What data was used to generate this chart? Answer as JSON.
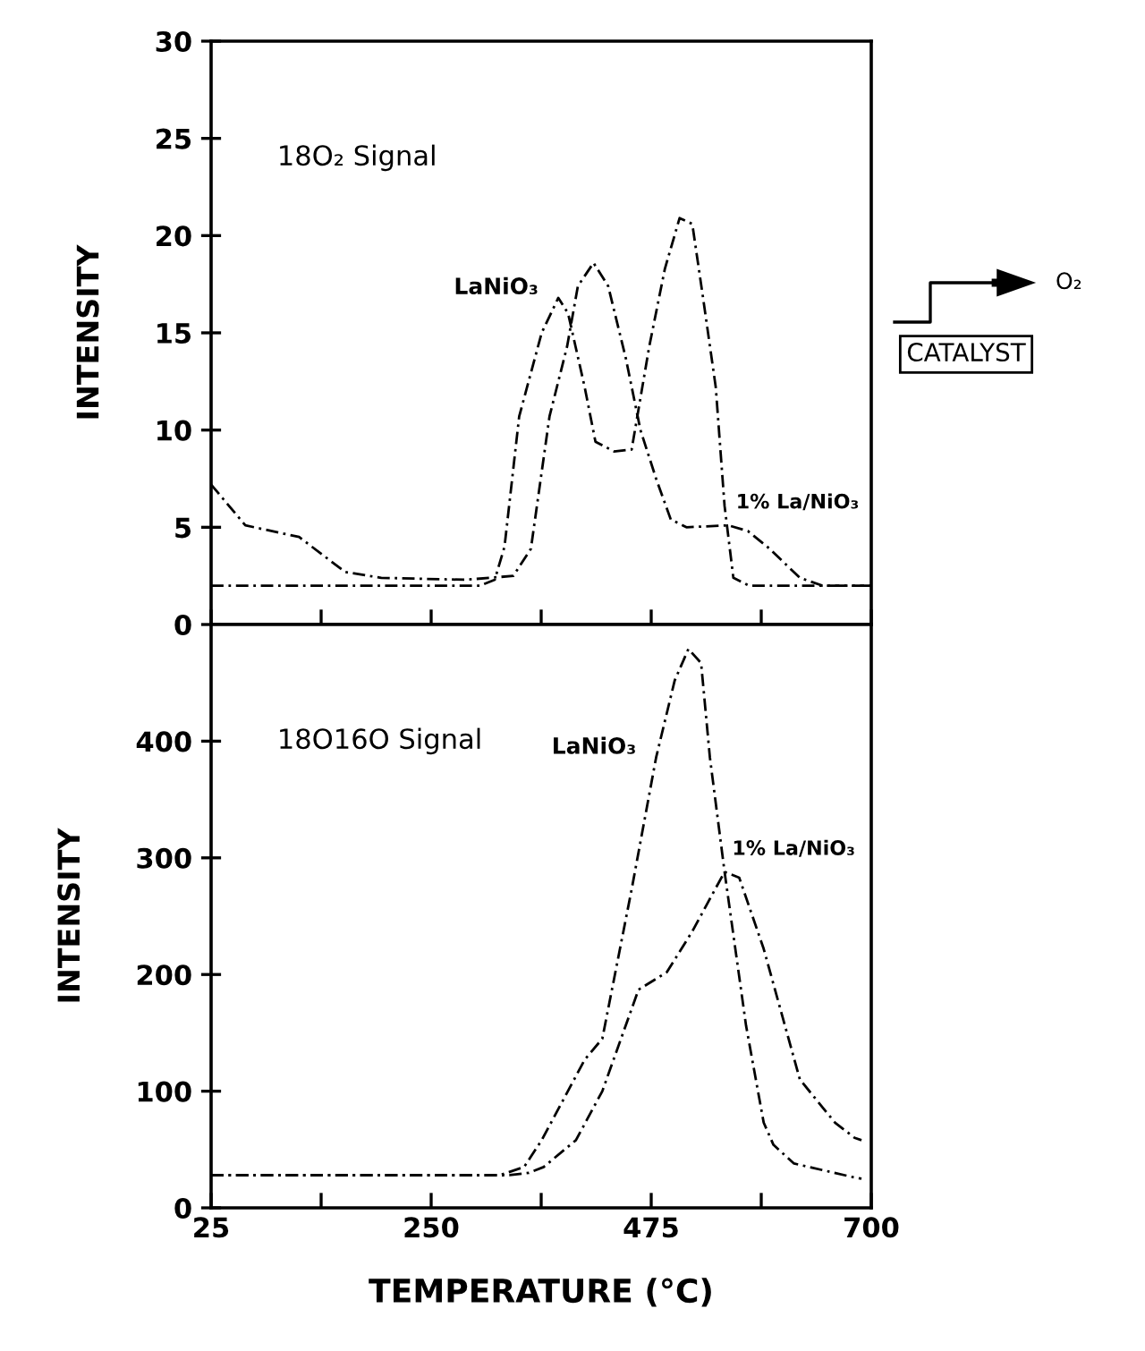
{
  "chart_data": [
    {
      "type": "line",
      "ylabel": "INTENSITY",
      "xlim": [
        25,
        700
      ],
      "xticks": [
        25,
        {
          "value": 137.5,
          "label": null
        },
        250,
        {
          "value": 362.5,
          "label": null
        },
        475,
        {
          "value": 587.5,
          "label": null
        },
        700
      ],
      "ylim": [
        0,
        30
      ],
      "yticks": [
        0,
        5,
        10,
        15,
        20,
        25,
        30
      ],
      "tick_labels": "y",
      "grid": false,
      "legend": false,
      "marker": "none",
      "line_style": "dashed",
      "series": [
        {
          "color": "#000000",
          "x": [
            25,
            300,
            315,
            325,
            340,
            363,
            380,
            390,
            407,
            418,
            437,
            455,
            473,
            489,
            504,
            517,
            528,
            541,
            550,
            559,
            575,
            700
          ],
          "values": [
            2,
            2,
            2.3,
            4,
            10.7,
            15,
            16.8,
            16,
            12.2,
            9.4,
            8.9,
            9,
            14.3,
            18.3,
            20.9,
            20.6,
            16.8,
            12.2,
            6.1,
            2.4,
            2,
            2
          ]
        },
        {
          "color": "#000000",
          "x": [
            25,
            60,
            115,
            162,
            199,
            285,
            334,
            352,
            371,
            389,
            400,
            416,
            431,
            449,
            464,
            480,
            495,
            511,
            554,
            574,
            596,
            627,
            650,
            700
          ],
          "values": [
            7.2,
            5.1,
            4.5,
            2.7,
            2.4,
            2.3,
            2.5,
            3.9,
            10.7,
            14.3,
            17.4,
            18.6,
            17.4,
            13.7,
            10,
            7.5,
            5.4,
            5,
            5.1,
            4.8,
            3.9,
            2.4,
            2,
            2
          ]
        }
      ],
      "annotations": [
        "18O₂ Signal",
        {
          "text": "LaNiO₃",
          "x": 380,
          "y": 16.8
        },
        {
          "text": "1% La/NiO₃",
          "x": 554,
          "y": 5.1
        },
        "O₂",
        "CATALYST"
      ]
    },
    {
      "type": "line",
      "ylabel": "INTENSITY",
      "xlabel": "TEMPERATURE (°C)",
      "xlim": [
        25,
        700
      ],
      "xticks": [
        25,
        {
          "value": 137.5,
          "label": null
        },
        250,
        {
          "value": 362.5,
          "label": null
        },
        475,
        {
          "value": 587.5,
          "label": null
        },
        700
      ],
      "ylim": [
        0,
        500
      ],
      "yticks": [
        0,
        100,
        200,
        300,
        400
      ],
      "grid": false,
      "legend": false,
      "marker": "none",
      "line_style": "dashed",
      "series": [
        {
          "color": "#000000",
          "x": [
            25,
            320,
            345,
            363,
            407,
            425,
            455,
            480,
            499,
            513,
            526,
            535,
            550,
            572,
            590,
            600,
            621,
            683,
            690
          ],
          "values": [
            28,
            28,
            35,
            58,
            127,
            145,
            273,
            386,
            452,
            479,
            467,
            386,
            288,
            156,
            73,
            54,
            38,
            26,
            25
          ]
        },
        {
          "color": "#000000",
          "x": [
            25,
            330,
            350,
            365,
            398,
            425,
            462,
            491,
            517,
            550,
            565,
            590,
            627,
            663,
            683,
            690
          ],
          "values": [
            28,
            28,
            30,
            35,
            58,
            100,
            187,
            202,
            237,
            288,
            283,
            222,
            110,
            73,
            60,
            58
          ]
        }
      ],
      "annotations": [
        "18O16O Signal",
        {
          "text": "LaNiO₃",
          "x": 480,
          "y": 386
        },
        {
          "text": "1% La/NiO₃",
          "x": 550,
          "y": 288
        }
      ]
    }
  ]
}
